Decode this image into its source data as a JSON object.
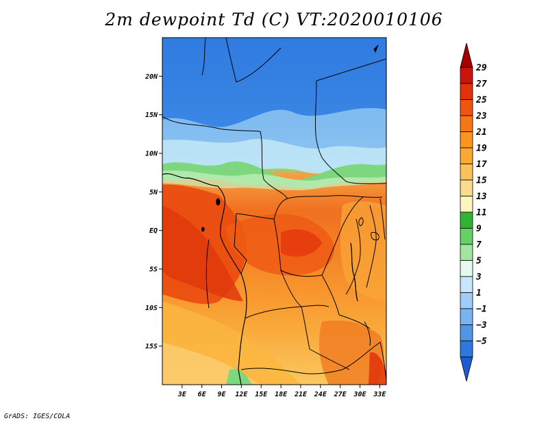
{
  "title": "2m dewpoint Td (C) VT:2020010106",
  "credit": "GrADS: IGES/COLA",
  "map": {
    "variable": "2m dewpoint",
    "units": "C",
    "lon_range": [
      0,
      34
    ],
    "lat_range": [
      -20,
      25
    ],
    "lat_ticks": [
      {
        "value": 20,
        "label": "20N"
      },
      {
        "value": 15,
        "label": "15N"
      },
      {
        "value": 10,
        "label": "10N"
      },
      {
        "value": 5,
        "label": "5N"
      },
      {
        "value": 0,
        "label": "EQ"
      },
      {
        "value": -5,
        "label": "5S"
      },
      {
        "value": -10,
        "label": "10S"
      },
      {
        "value": -15,
        "label": "15S"
      }
    ],
    "lon_ticks": [
      {
        "value": 3,
        "label": "3E"
      },
      {
        "value": 6,
        "label": "6E"
      },
      {
        "value": 9,
        "label": "9E"
      },
      {
        "value": 12,
        "label": "12E"
      },
      {
        "value": 15,
        "label": "15E"
      },
      {
        "value": 18,
        "label": "18E"
      },
      {
        "value": 21,
        "label": "21E"
      },
      {
        "value": 24,
        "label": "24E"
      },
      {
        "value": 27,
        "label": "27E"
      },
      {
        "value": 30,
        "label": "30E"
      },
      {
        "value": 33,
        "label": "33E"
      }
    ]
  },
  "colorbar": {
    "labels": [
      "29",
      "27",
      "25",
      "23",
      "21",
      "19",
      "17",
      "15",
      "13",
      "11",
      "9",
      "7",
      "5",
      "3",
      "1",
      "−1",
      "−3",
      "−5"
    ],
    "colors": [
      "#a50000",
      "#c8140a",
      "#e1320a",
      "#f0550f",
      "#f57814",
      "#fa961e",
      "#faaa32",
      "#fac35a",
      "#fadc8c",
      "#fff5be",
      "#32b432",
      "#64d264",
      "#a0e6a0",
      "#e6faf0",
      "#c8e6fa",
      "#a0cdf5",
      "#78b4f0",
      "#5096e6",
      "#2d78dc",
      "#1e5ad2"
    ]
  }
}
